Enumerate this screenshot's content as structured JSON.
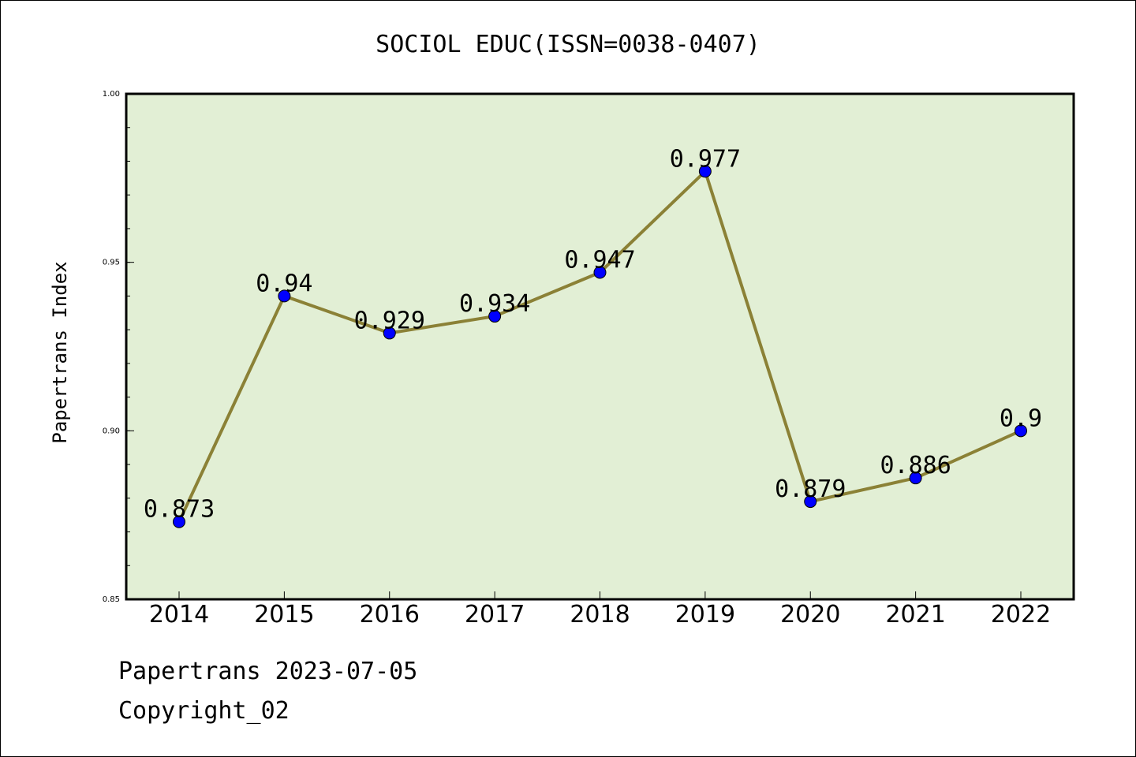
{
  "chart_data": {
    "type": "line",
    "title": "SOCIOL EDUC(ISSN=0038-0407)",
    "xlabel": "",
    "ylabel": "Papertrans Index",
    "categories": [
      "2014",
      "2015",
      "2016",
      "2017",
      "2018",
      "2019",
      "2020",
      "2021",
      "2022"
    ],
    "series": [
      {
        "values": [
          0.873,
          0.94,
          0.929,
          0.934,
          0.947,
          0.977,
          0.879,
          0.886,
          0.9
        ],
        "data_labels": [
          "0.873",
          "0.94",
          "0.929",
          "0.934",
          "0.947",
          "0.977",
          "0.879",
          "0.886",
          "0.9"
        ]
      }
    ],
    "ylim": [
      0.85,
      1.0
    ],
    "yticks": [
      "0.85",
      "0.90",
      "0.95",
      "1.00"
    ],
    "grid": false,
    "colors": {
      "plot_background": "#e2efd5",
      "line": "#8b8136",
      "marker": "#0000ff"
    }
  },
  "footer": {
    "date_line": "Papertrans 2023-07-05",
    "copyright_line": "Copyright_02"
  }
}
